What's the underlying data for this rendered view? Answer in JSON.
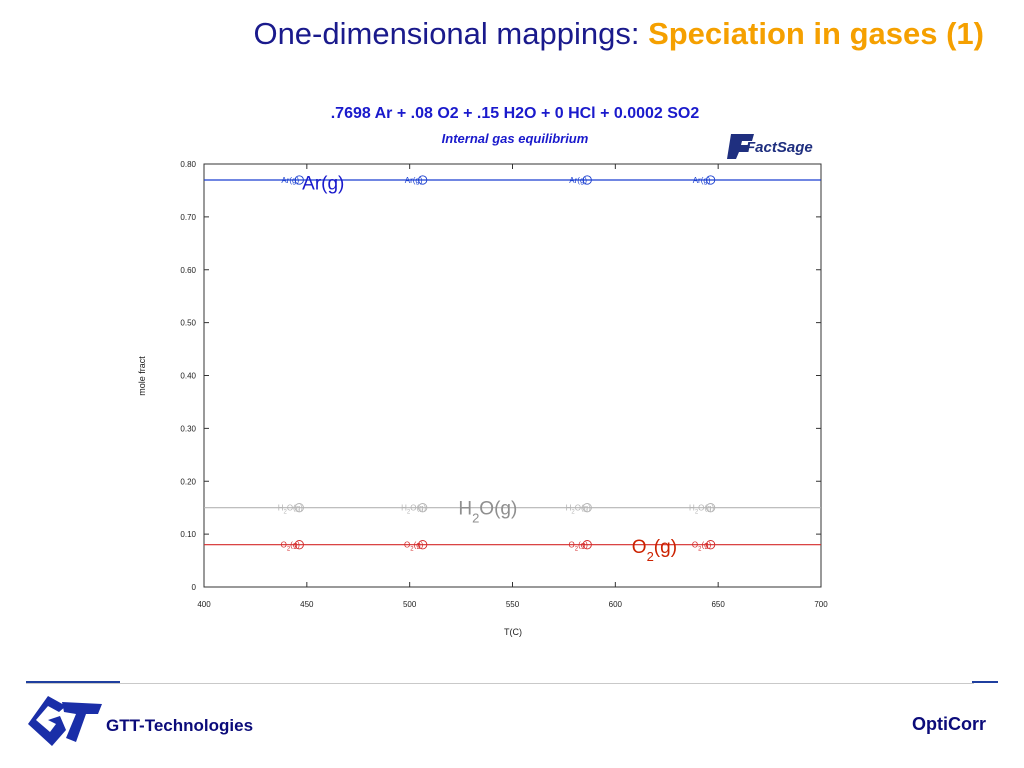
{
  "slide": {
    "title_part1": "One-dimensional mappings: ",
    "title_part2": "Speciation in gases (1)"
  },
  "chart_data": {
    "type": "line",
    "title": ".7698 Ar +  .08 O2 +  .15 H2O +  0 HCl + 0.0002 SO2",
    "subtitle": "Internal gas equilibrium",
    "watermark": "FactSage",
    "xlabel": "T(C)",
    "ylabel": "mole fract",
    "xlim": [
      400,
      700
    ],
    "ylim": [
      0,
      0.8
    ],
    "x_ticks": [
      400,
      450,
      500,
      550,
      600,
      650,
      700
    ],
    "x_tick_labels": [
      "400",
      "450",
      "500",
      "550",
      "600",
      "650",
      "700"
    ],
    "y_ticks": [
      0,
      0.1,
      0.2,
      0.3,
      0.4,
      0.5,
      0.6,
      0.7,
      0.8
    ],
    "y_tick_labels": [
      "0",
      "0.10",
      "0.20",
      "0.30",
      "0.40",
      "0.50",
      "0.60",
      "0.70",
      "0.80"
    ],
    "grid": false,
    "series": [
      {
        "name": "Ar(g)",
        "color": "#1a3fd0",
        "x": [
          400,
          700
        ],
        "y": [
          0.7698,
          0.7698
        ],
        "marker_label": "Ar(g)",
        "marker_x": [
          440,
          500,
          580,
          640
        ]
      },
      {
        "name": "H2O(g)",
        "color": "#b4b4b4",
        "x": [
          400,
          700
        ],
        "y": [
          0.15,
          0.15
        ],
        "marker_label": "H2O(g)",
        "marker_x": [
          440,
          500,
          580,
          640
        ]
      },
      {
        "name": "O2(g)",
        "color": "#d42a2a",
        "x": [
          400,
          700
        ],
        "y": [
          0.08,
          0.08
        ],
        "marker_label": "O2(g)",
        "marker_x": [
          440,
          500,
          580,
          640
        ]
      }
    ],
    "annotations": [
      {
        "text": "Ar(g)",
        "x": 458,
        "y": 0.752,
        "color": "#1a1acc"
      },
      {
        "text": "H2O(g)",
        "x": 538,
        "y": 0.137,
        "color": "#8f8f8f"
      },
      {
        "text": "O2(g)",
        "x": 619,
        "y": 0.064,
        "color": "#cc2200"
      }
    ]
  },
  "footer": {
    "company": "GTT-Technologies",
    "product": "OptiCorr"
  }
}
